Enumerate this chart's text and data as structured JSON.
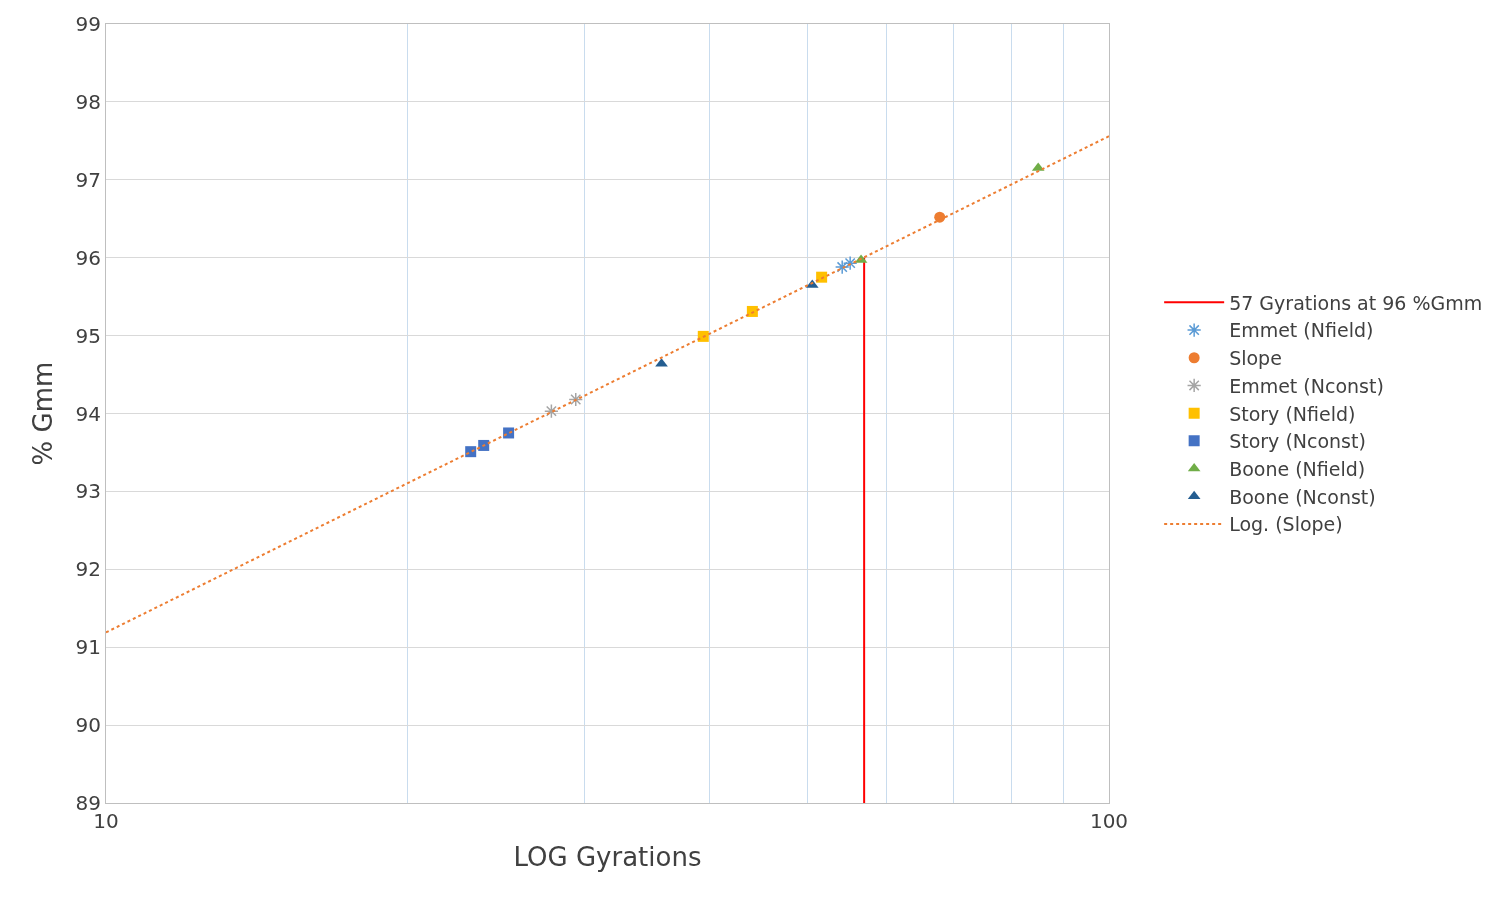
{
  "chart_data": {
    "type": "scatter",
    "xlabel": "LOG Gyrations",
    "ylabel": "% Gmm",
    "log": "x",
    "xlim": [
      10,
      100
    ],
    "xticks": [
      10,
      {
        "value": 20,
        "label": null
      },
      {
        "value": 30,
        "label": null
      },
      {
        "value": 40,
        "label": null
      },
      {
        "value": 50,
        "label": null
      },
      {
        "value": 60,
        "label": null
      },
      {
        "value": 70,
        "label": null
      },
      {
        "value": 80,
        "label": null
      },
      {
        "value": 90,
        "label": null
      },
      100
    ],
    "ylim": [
      89,
      99
    ],
    "yticks": [
      89,
      90,
      91,
      92,
      93,
      94,
      95,
      96,
      97,
      98,
      99
    ],
    "grid": true,
    "legend": "right",
    "series": [
      {
        "name": "57 Gyrations at 96 %Gmm",
        "type": "line",
        "color": "#ff0000",
        "x": [
          57,
          57
        ],
        "values": [
          89,
          96
        ],
        "marker": "none",
        "line_style": "solid"
      },
      {
        "name": "Emmet (Nfield)",
        "color": "#5b9bd5",
        "x": [
          54.2,
          55.2
        ],
        "values": [
          95.88,
          95.93
        ],
        "marker": "cross"
      },
      {
        "name": "Slope",
        "color": "#ed7d31",
        "x": [
          67.8
        ],
        "values": [
          96.52
        ],
        "marker": "circle"
      },
      {
        "name": "Emmet (Nconst)",
        "color": "#a5a5a5",
        "x": [
          27.8,
          29.4
        ],
        "values": [
          94.03,
          94.18
        ],
        "marker": "cross"
      },
      {
        "name": "Story (Nfield)",
        "color": "#ffc000",
        "x": [
          39.4,
          44.1,
          51.7
        ],
        "values": [
          94.99,
          95.31,
          95.75
        ],
        "marker": "square"
      },
      {
        "name": "Story (Nconst)",
        "color": "#4472c4",
        "x": [
          23.1,
          23.8,
          25.2
        ],
        "values": [
          93.51,
          93.59,
          93.75
        ],
        "marker": "square"
      },
      {
        "name": "Boone (Nfield)",
        "color": "#70ad47",
        "x": [
          56.6,
          85.0
        ],
        "values": [
          95.97,
          97.15
        ],
        "marker": "triangle"
      },
      {
        "name": "Boone (Nconst)",
        "color": "#255e91",
        "x": [
          35.8,
          50.6
        ],
        "values": [
          94.64,
          95.65
        ],
        "marker": "triangle"
      },
      {
        "name": "Log. (Slope)",
        "type": "line",
        "color": "#ed7d31",
        "x": [
          10,
          100
        ],
        "values": [
          91.19,
          97.56
        ],
        "marker": "none",
        "line_style": "dotted"
      }
    ]
  }
}
